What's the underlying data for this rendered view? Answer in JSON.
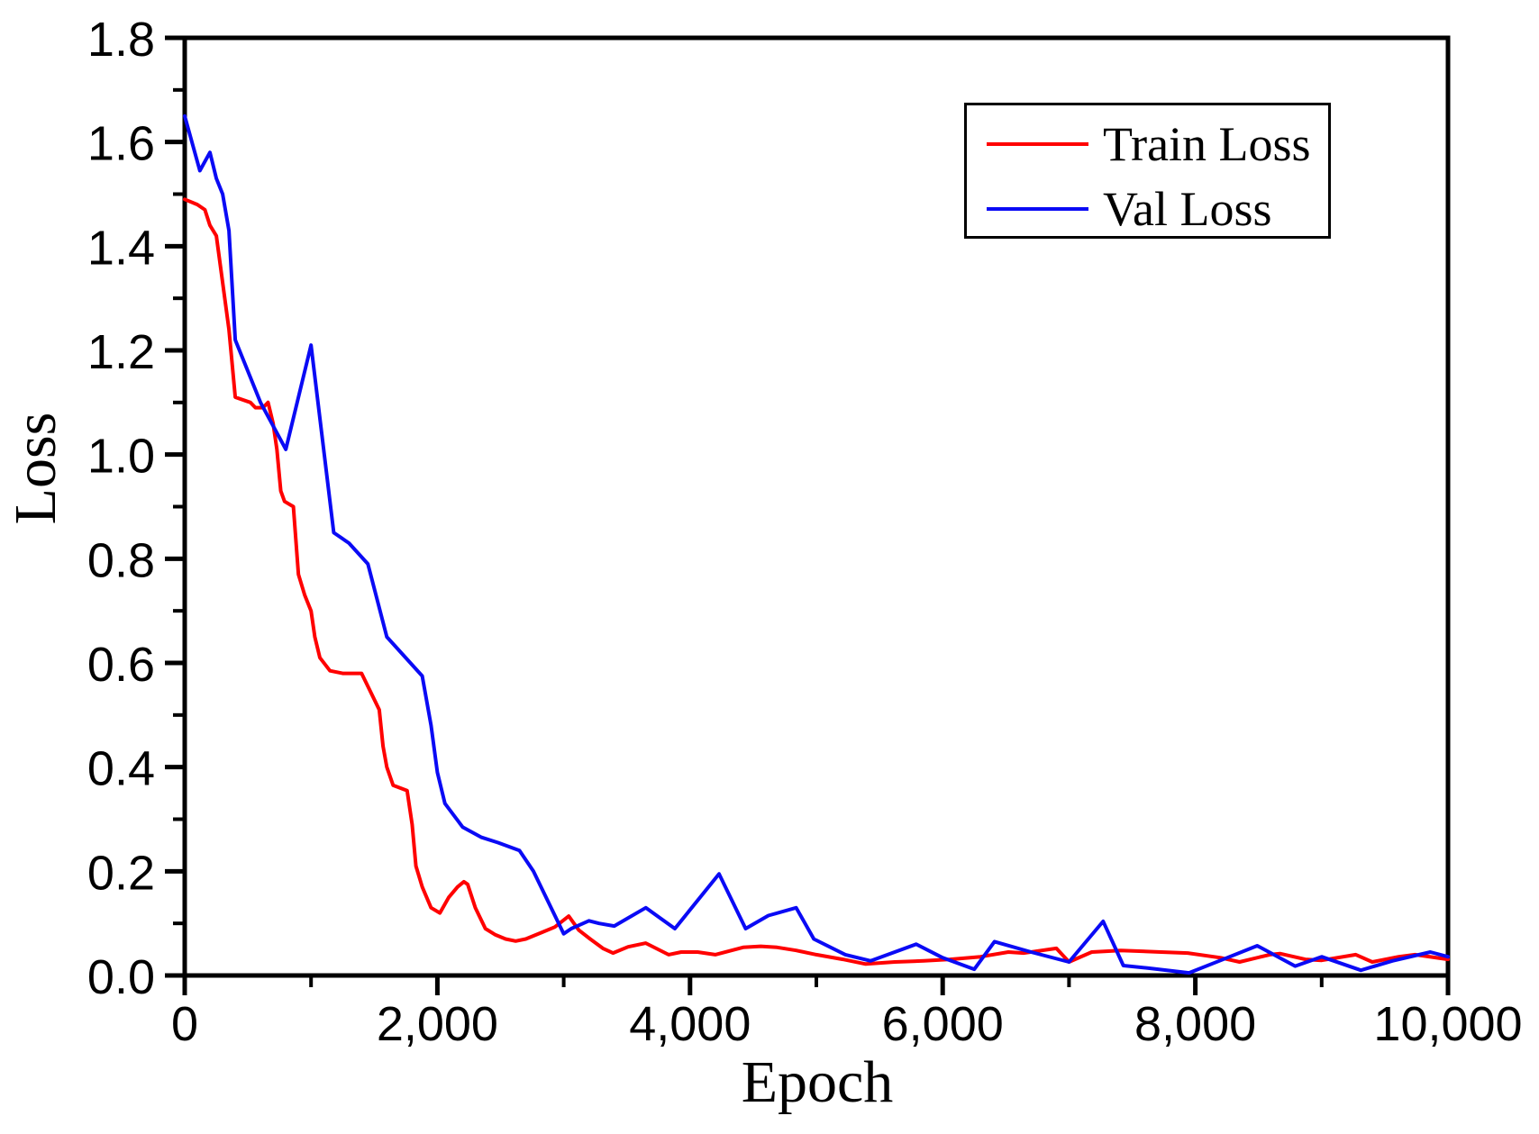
{
  "figure": {
    "background_color": "#ffffff",
    "axis_color": "#000000",
    "text_color": "#000000"
  },
  "chart_data": {
    "type": "line",
    "title": "",
    "xlabel": "Epoch",
    "ylabel": "Loss",
    "xlim": [
      0,
      10000
    ],
    "ylim": [
      0,
      1.8
    ],
    "grid": false,
    "frame": "full-box",
    "legend_position": "top-right",
    "x_major_ticks": [
      0,
      2000,
      4000,
      6000,
      8000,
      10000
    ],
    "x_tick_labels": [
      "0",
      "2,000",
      "4,000",
      "6,000",
      "8,000",
      "10,000"
    ],
    "x_minor_ticks": [
      1000,
      3000,
      5000,
      7000,
      9000
    ],
    "y_major_ticks": [
      0.0,
      0.2,
      0.4,
      0.6,
      0.8,
      1.0,
      1.2,
      1.4,
      1.6,
      1.8
    ],
    "y_tick_labels": [
      "0.0",
      "0.2",
      "0.4",
      "0.6",
      "0.8",
      "1.0",
      "1.2",
      "1.4",
      "1.6",
      "1.8"
    ],
    "y_minor_ticks": [
      0.1,
      0.3,
      0.5,
      0.7,
      0.9,
      1.1,
      1.3,
      1.5,
      1.7
    ],
    "series": [
      {
        "name": "Train Loss",
        "color": "#ff0000",
        "x": [
          0,
          100,
          160,
          200,
          250,
          300,
          350,
          400,
          520,
          560,
          620,
          660,
          700,
          730,
          760,
          790,
          860,
          900,
          950,
          1000,
          1030,
          1070,
          1150,
          1250,
          1400,
          1460,
          1540,
          1570,
          1600,
          1650,
          1760,
          1800,
          1830,
          1880,
          1950,
          2020,
          2090,
          2160,
          2210,
          2240,
          2300,
          2380,
          2460,
          2540,
          2620,
          2700,
          2830,
          2930,
          3040,
          3120,
          3210,
          3310,
          3390,
          3510,
          3650,
          3830,
          3930,
          4060,
          4200,
          4420,
          4560,
          4690,
          4840,
          5000,
          5210,
          5390,
          5620,
          5850,
          6060,
          6300,
          6520,
          6640,
          6900,
          7000,
          7180,
          7410,
          7730,
          7940,
          8200,
          8350,
          8590,
          8670,
          8870,
          9000,
          9270,
          9400,
          9610,
          9740,
          10000
        ],
        "y": [
          1.49,
          1.48,
          1.47,
          1.44,
          1.42,
          1.33,
          1.24,
          1.11,
          1.1,
          1.09,
          1.09,
          1.1,
          1.06,
          1.01,
          0.93,
          0.91,
          0.9,
          0.77,
          0.73,
          0.7,
          0.65,
          0.61,
          0.585,
          0.58,
          0.58,
          0.55,
          0.51,
          0.44,
          0.4,
          0.365,
          0.355,
          0.29,
          0.21,
          0.17,
          0.13,
          0.12,
          0.15,
          0.17,
          0.18,
          0.175,
          0.13,
          0.09,
          0.078,
          0.07,
          0.066,
          0.07,
          0.083,
          0.093,
          0.114,
          0.087,
          0.07,
          0.052,
          0.043,
          0.055,
          0.062,
          0.04,
          0.045,
          0.045,
          0.04,
          0.054,
          0.056,
          0.054,
          0.048,
          0.04,
          0.031,
          0.022,
          0.026,
          0.028,
          0.031,
          0.036,
          0.045,
          0.043,
          0.052,
          0.026,
          0.045,
          0.048,
          0.045,
          0.043,
          0.034,
          0.026,
          0.04,
          0.042,
          0.031,
          0.029,
          0.04,
          0.026,
          0.036,
          0.04,
          0.031
        ]
      },
      {
        "name": "Val Loss",
        "color": "#0a0af5",
        "x": [
          0,
          120,
          200,
          250,
          300,
          350,
          400,
          600,
          800,
          1000,
          1180,
          1300,
          1450,
          1600,
          1880,
          1950,
          2000,
          2060,
          2200,
          2350,
          2480,
          2650,
          2760,
          2880,
          3000,
          3060,
          3200,
          3280,
          3400,
          3650,
          3880,
          4230,
          4440,
          4620,
          4840,
          4980,
          5230,
          5430,
          5790,
          6000,
          6250,
          6410,
          6700,
          7000,
          7270,
          7430,
          7630,
          7950,
          8190,
          8490,
          8790,
          9000,
          9310,
          9560,
          9860,
          10000
        ],
        "y": [
          1.65,
          1.545,
          1.58,
          1.53,
          1.5,
          1.43,
          1.22,
          1.1,
          1.01,
          1.21,
          0.85,
          0.83,
          0.79,
          0.65,
          0.575,
          0.48,
          0.39,
          0.33,
          0.285,
          0.265,
          0.255,
          0.24,
          0.2,
          0.14,
          0.08,
          0.09,
          0.105,
          0.1,
          0.095,
          0.13,
          0.09,
          0.195,
          0.09,
          0.115,
          0.13,
          0.07,
          0.04,
          0.028,
          0.06,
          0.034,
          0.012,
          0.065,
          0.045,
          0.026,
          0.104,
          0.019,
          0.014,
          0.005,
          0.028,
          0.057,
          0.018,
          0.036,
          0.01,
          0.028,
          0.045,
          0.036
        ]
      }
    ]
  },
  "legend": {
    "border_color": "#000000"
  }
}
